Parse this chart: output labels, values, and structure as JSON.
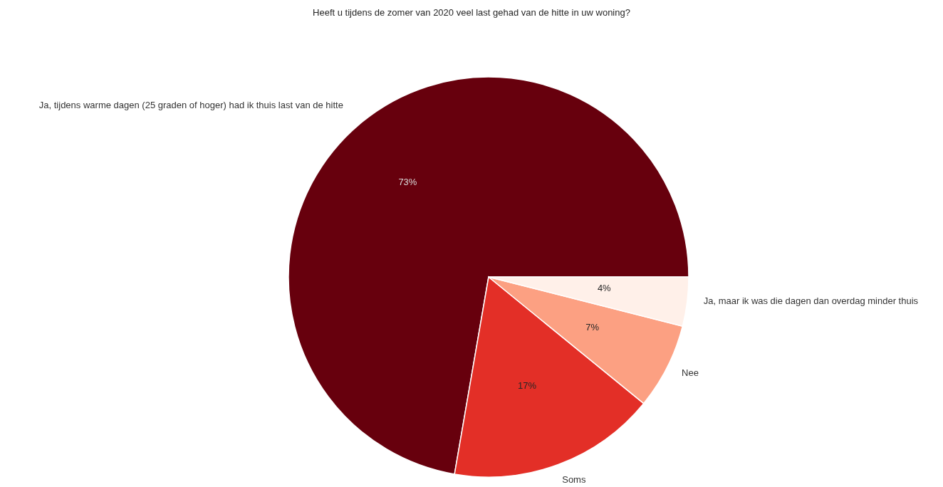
{
  "chart_data": {
    "type": "pie",
    "title": "Heeft u tijdens de zomer van 2020 veel last gehad van de hitte in uw woning?",
    "categories": [
      "Ja, tijdens warme dagen (25 graden of hoger) had ik thuis last van de hitte",
      "Soms",
      "Nee",
      "Ja, maar ik was die dagen dan overdag minder thuis"
    ],
    "values": [
      73,
      17,
      7,
      4
    ],
    "colors": [
      "#67000d",
      "#e32f27",
      "#fca082",
      "#fff0e9"
    ],
    "value_labels": [
      "73%",
      "17%",
      "7%",
      "4%"
    ]
  }
}
